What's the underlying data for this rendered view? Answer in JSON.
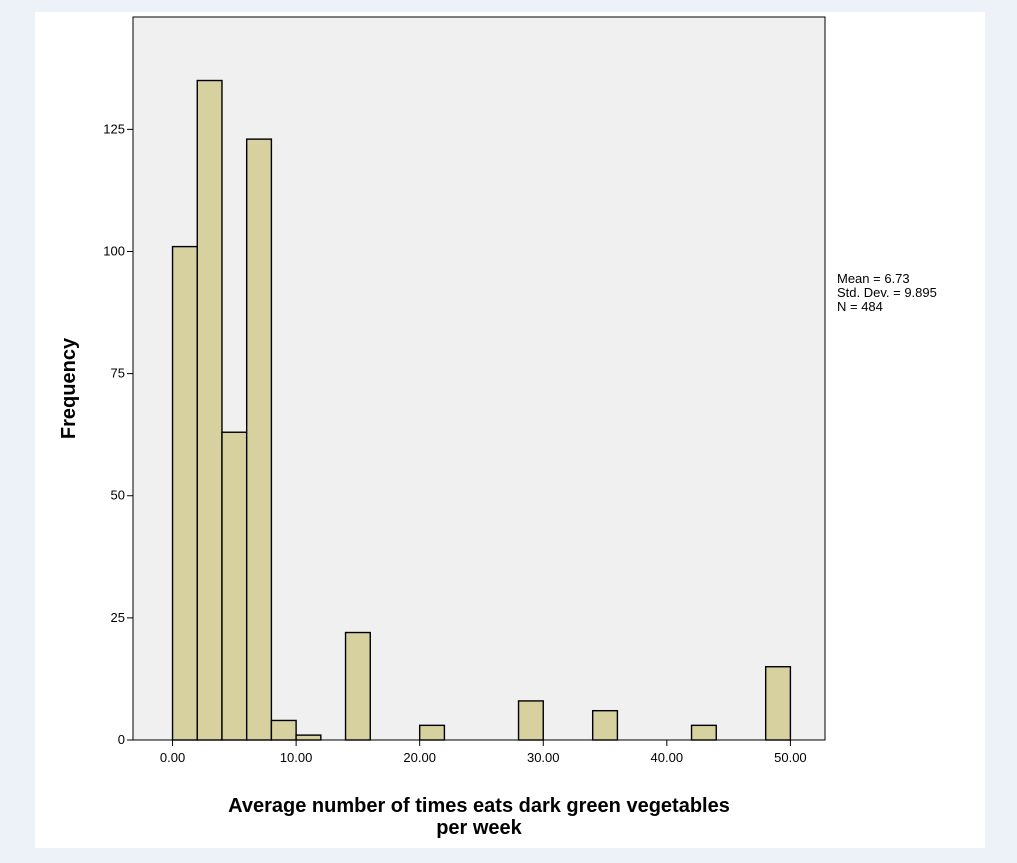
{
  "chart_data": {
    "type": "bar",
    "subtype": "histogram",
    "xlabel_lines": [
      "Average number of times eats dark green vegetables",
      "per week"
    ],
    "ylabel": "Frequency",
    "x_ticks": [
      {
        "value": 0,
        "label": "0.00"
      },
      {
        "value": 10,
        "label": "10.00"
      },
      {
        "value": 20,
        "label": "20.00"
      },
      {
        "value": 30,
        "label": "30.00"
      },
      {
        "value": 40,
        "label": "40.00"
      },
      {
        "value": 50,
        "label": "50.00"
      }
    ],
    "y_ticks": [
      {
        "value": 0,
        "label": "0"
      },
      {
        "value": 25,
        "label": "25"
      },
      {
        "value": 50,
        "label": "50"
      },
      {
        "value": 75,
        "label": "75"
      },
      {
        "value": 100,
        "label": "100"
      },
      {
        "value": 125,
        "label": "125"
      }
    ],
    "xlim": [
      -3.2,
      52.8
    ],
    "ylim": [
      0,
      148
    ],
    "bin_width": 2,
    "bins": [
      {
        "start": 0,
        "end": 2,
        "count": 101
      },
      {
        "start": 2,
        "end": 4,
        "count": 135
      },
      {
        "start": 4,
        "end": 6,
        "count": 63
      },
      {
        "start": 6,
        "end": 8,
        "count": 123
      },
      {
        "start": 8,
        "end": 10,
        "count": 4
      },
      {
        "start": 10,
        "end": 12,
        "count": 1
      },
      {
        "start": 14,
        "end": 16,
        "count": 22
      },
      {
        "start": 20,
        "end": 22,
        "count": 3
      },
      {
        "start": 28,
        "end": 30,
        "count": 8
      },
      {
        "start": 34,
        "end": 36,
        "count": 6
      },
      {
        "start": 42,
        "end": 44,
        "count": 3
      },
      {
        "start": 48,
        "end": 50,
        "count": 15
      }
    ],
    "stats": [
      "Mean = 6.73",
      "Std. Dev. = 9.895",
      "N = 484"
    ],
    "grid": false,
    "legend": "none",
    "colors": {
      "bar_fill": "#d7d1a0",
      "bar_stroke": "#000000",
      "plot_background": "#f0f0f0",
      "page_background": "#edf2f9"
    }
  }
}
